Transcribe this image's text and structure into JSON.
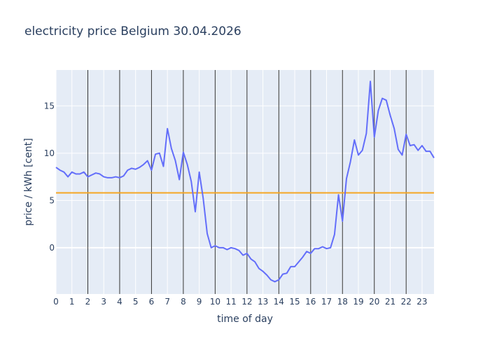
{
  "chart_data": {
    "type": "line",
    "title": "electricity price Belgium 30.04.2026",
    "xlabel": "time of day",
    "ylabel": "price / kWh [cent]",
    "xlim": [
      0,
      23.75
    ],
    "ylim": [
      -4.9,
      18.8
    ],
    "x_ticks": [
      0,
      1,
      2,
      3,
      4,
      5,
      6,
      7,
      8,
      9,
      10,
      11,
      12,
      13,
      14,
      15,
      16,
      17,
      18,
      19,
      20,
      21,
      22,
      23
    ],
    "x_tick_labels": [
      "0",
      "1",
      "2",
      "3",
      "4",
      "5",
      "6",
      "7",
      "8",
      "9",
      "10",
      "11",
      "12",
      "13",
      "14",
      "15",
      "16",
      "17",
      "18",
      "19",
      "20",
      "21",
      "22",
      "23"
    ],
    "y_ticks": [
      0,
      5,
      10,
      15
    ],
    "y_tick_labels": [
      "0",
      "5",
      "10",
      "15"
    ],
    "vertical_lines_at": [
      2,
      4,
      6,
      8,
      10,
      12,
      14,
      16,
      18,
      20,
      22
    ],
    "reference_line": {
      "y": 5.8,
      "color": "#f5a623"
    },
    "grid": true,
    "plot_background": "#e5ecf6",
    "series": [
      {
        "color": "#636efa",
        "x": [
          0,
          0.25,
          0.5,
          0.75,
          1,
          1.25,
          1.5,
          1.75,
          2,
          2.25,
          2.5,
          2.75,
          3,
          3.25,
          3.5,
          3.75,
          4,
          4.25,
          4.5,
          4.75,
          5,
          5.25,
          5.5,
          5.75,
          6,
          6.25,
          6.5,
          6.75,
          7,
          7.25,
          7.5,
          7.75,
          8,
          8.25,
          8.5,
          8.75,
          9,
          9.25,
          9.5,
          9.75,
          10,
          10.25,
          10.5,
          10.75,
          11,
          11.25,
          11.5,
          11.75,
          12,
          12.25,
          12.5,
          12.75,
          13,
          13.25,
          13.5,
          13.75,
          14,
          14.25,
          14.5,
          14.75,
          15,
          15.25,
          15.5,
          15.75,
          16,
          16.25,
          16.5,
          16.75,
          17,
          17.25,
          17.5,
          17.75,
          18,
          18.25,
          18.5,
          18.75,
          19,
          19.25,
          19.5,
          19.75,
          20,
          20.25,
          20.5,
          20.75,
          21,
          21.25,
          21.5,
          21.75,
          22,
          22.25,
          22.5,
          22.75,
          23,
          23.25,
          23.5,
          23.75
        ],
        "values": [
          8.5,
          8.2,
          8.0,
          7.5,
          8.0,
          7.8,
          7.8,
          8.0,
          7.5,
          7.7,
          7.9,
          7.8,
          7.5,
          7.4,
          7.4,
          7.5,
          7.4,
          7.6,
          8.2,
          8.4,
          8.3,
          8.5,
          8.8,
          9.2,
          8.2,
          9.9,
          10.0,
          8.6,
          12.6,
          10.5,
          9.2,
          7.2,
          10.1,
          8.8,
          7.0,
          3.8,
          8.0,
          5.2,
          1.5,
          0.0,
          0.2,
          0.0,
          0.0,
          -0.2,
          0.0,
          -0.1,
          -0.3,
          -0.8,
          -0.6,
          -1.2,
          -1.5,
          -2.2,
          -2.5,
          -2.9,
          -3.4,
          -3.6,
          -3.4,
          -2.8,
          -2.7,
          -2.0,
          -2.0,
          -1.5,
          -1.0,
          -0.4,
          -0.6,
          -0.1,
          -0.1,
          0.1,
          -0.1,
          0.0,
          1.4,
          5.6,
          2.8,
          7.3,
          9.1,
          11.4,
          9.8,
          10.3,
          12.1,
          17.6,
          11.7,
          14.5,
          15.8,
          15.6,
          14.0,
          12.6,
          10.4,
          9.8,
          12.0,
          10.8,
          10.9,
          10.3,
          10.8,
          10.2,
          10.2,
          9.5
        ]
      }
    ]
  }
}
